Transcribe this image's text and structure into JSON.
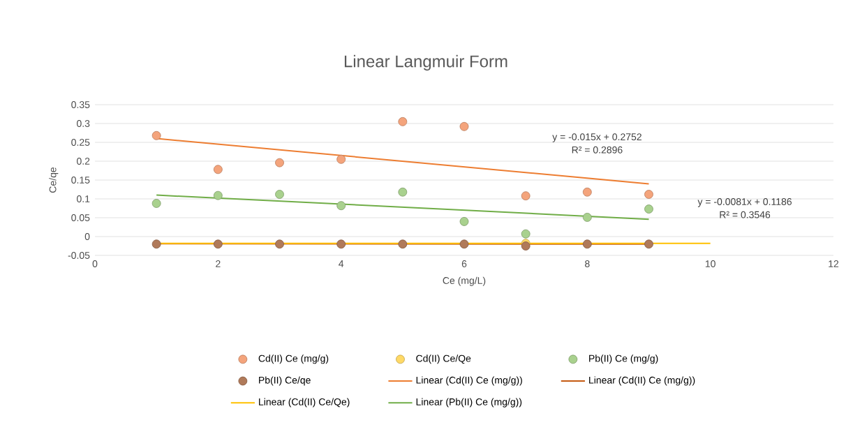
{
  "chart_data": {
    "type": "scatter",
    "title": "Linear Langmuir Form",
    "xlabel": "Ce (mg/L)",
    "ylabel": "Ce/qe",
    "xlim": [
      0,
      12
    ],
    "xticks": [
      0,
      2,
      4,
      6,
      8,
      10,
      12
    ],
    "ylim": [
      -0.05,
      0.35
    ],
    "yticks": [
      -0.05,
      0,
      0.05,
      0.1,
      0.15,
      0.2,
      0.25,
      0.3,
      0.35
    ],
    "grid": "y",
    "legend": "bottom",
    "series": [
      {
        "name": "Cd(II) Ce (mg/g)",
        "marker": "circle",
        "color": "#f4a47c",
        "x": [
          1,
          2,
          3,
          4,
          5,
          6,
          7,
          8,
          9
        ],
        "values": [
          0.268,
          0.178,
          0.196,
          0.205,
          0.305,
          0.292,
          0.108,
          0.118,
          0.112
        ]
      },
      {
        "name": "Cd(II) Ce/Qe",
        "marker": "circle",
        "color": "#ffd966",
        "x": [
          7
        ],
        "values": [
          -0.018
        ]
      },
      {
        "name": "Pb(II) Ce (mg/g)",
        "marker": "circle",
        "color": "#a9d18e",
        "x": [
          1,
          2,
          3,
          4,
          5,
          6,
          7,
          8,
          9
        ],
        "values": [
          0.088,
          0.109,
          0.112,
          0.082,
          0.118,
          0.04,
          0.007,
          0.051,
          0.073
        ]
      },
      {
        "name": "Pb(II) Ce/qe",
        "marker": "circle",
        "color": "#b07a5a",
        "x": [
          1,
          2,
          3,
          4,
          5,
          6,
          7,
          8,
          9
        ],
        "values": [
          -0.02,
          -0.02,
          -0.02,
          -0.02,
          -0.02,
          -0.02,
          -0.025,
          -0.02,
          -0.02
        ]
      },
      {
        "name": "Linear (Cd(II) Ce (mg/g))",
        "type": "line",
        "marker": "none",
        "color": "#ed7d31",
        "x": [
          1,
          9
        ],
        "values": [
          0.26,
          0.14
        ]
      },
      {
        "name": "Linear (Cd(II) Ce (mg/g))",
        "type": "line",
        "marker": "none",
        "color": "#c55a11",
        "x": [
          1,
          9
        ],
        "values": [
          -0.019,
          -0.02
        ]
      },
      {
        "name": "Linear (Cd(II) Ce/Qe)",
        "type": "line",
        "marker": "none",
        "color": "#ffc000",
        "x": [
          1,
          10
        ],
        "values": [
          -0.018,
          -0.018
        ]
      },
      {
        "name": "Linear (Pb(II) Ce (mg/g))",
        "type": "line",
        "marker": "none",
        "color": "#70ad47",
        "x": [
          1,
          9
        ],
        "values": [
          0.11,
          0.046
        ]
      }
    ],
    "annotations": [
      "y = -0.015x + 0.2752",
      "R² = 0.2896",
      "y = -0.0081x + 0.1186",
      "R² = 0.3546"
    ]
  }
}
